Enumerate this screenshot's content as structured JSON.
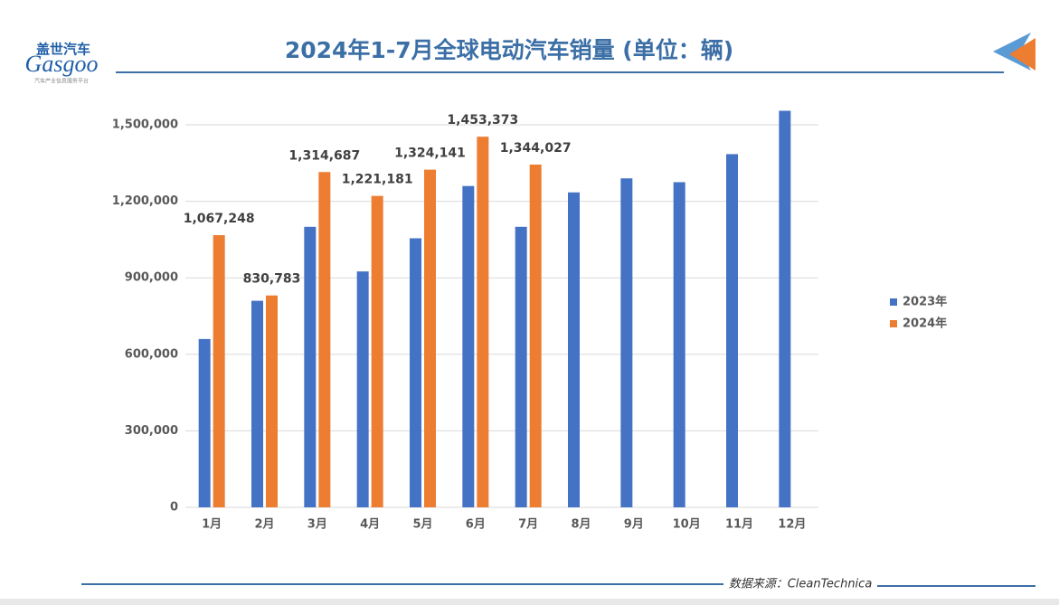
{
  "header": {
    "logo_cn": "盖世汽车",
    "logo_en": "Gasgoo",
    "logo_tagline": "汽车产业信息服务平台"
  },
  "footer": {
    "source": "数据来源：CleanTechnica"
  },
  "chart_data": {
    "type": "bar",
    "title": "2024年1-7月全球电动汽车销量 (单位：辆)",
    "categories": [
      "1月",
      "2月",
      "3月",
      "4月",
      "5月",
      "6月",
      "7月",
      "8月",
      "9月",
      "10月",
      "11月",
      "12月"
    ],
    "series": [
      {
        "name": "2023年",
        "color": "#4472c4",
        "values": [
          660000,
          810000,
          1100000,
          925000,
          1055000,
          1260000,
          1100000,
          1235000,
          1290000,
          1275000,
          1385000,
          1555000
        ]
      },
      {
        "name": "2024年",
        "color": "#ed7d31",
        "values": [
          1067248,
          830783,
          1314687,
          1221181,
          1324141,
          1453373,
          1344027,
          null,
          null,
          null,
          null,
          null
        ],
        "value_labels": [
          "1,067,248",
          "830,783",
          "1,314,687",
          "1,221,181",
          "1,324,141",
          "1,453,373",
          "1,344,027",
          null,
          null,
          null,
          null,
          null
        ]
      }
    ],
    "ylim": [
      0,
      1600000
    ],
    "yticks": [
      0,
      {
        "value": 300000,
        "label": "300,000"
      },
      {
        "value": 600000,
        "label": "600,000"
      },
      {
        "value": 900000,
        "label": "900,000"
      },
      {
        "value": 1200000,
        "label": "1,200,000"
      },
      {
        "value": 1500000,
        "label": "1,500,000"
      }
    ],
    "grid": true,
    "legend": "right"
  }
}
